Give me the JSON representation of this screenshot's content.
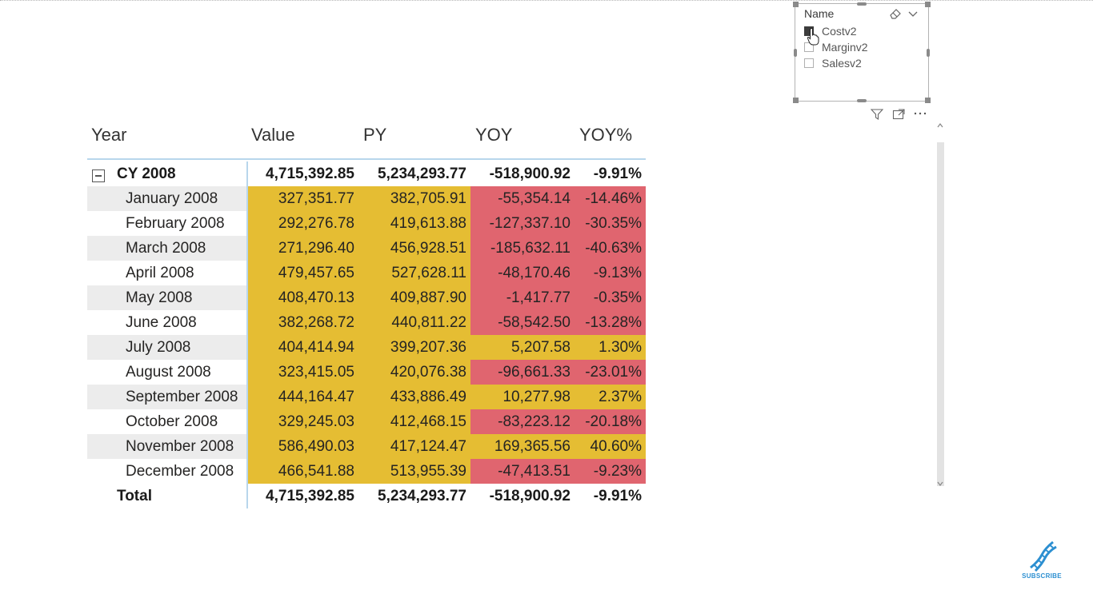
{
  "slicer": {
    "title": "Name",
    "items": [
      {
        "label": "Costv2",
        "checked": true
      },
      {
        "label": "Marginv2",
        "checked": false
      },
      {
        "label": "Salesv2",
        "checked": false
      }
    ],
    "icons": [
      "eraser-icon",
      "chevron-down-icon"
    ]
  },
  "visual_header": {
    "icons": [
      "filter-icon",
      "focus-mode-icon",
      "more-options-icon"
    ]
  },
  "matrix": {
    "columns": [
      "Year",
      "Value",
      "PY",
      "YOY",
      "YOY%"
    ],
    "subtotal": {
      "label": "CY 2008",
      "value": "4,715,392.85",
      "py": "5,234,293.77",
      "yoy": "-518,900.92",
      "yoyp": "-9.91%"
    },
    "rows": [
      {
        "label": "January 2008",
        "value": "327,351.77",
        "py": "382,705.91",
        "yoy": "-55,354.14",
        "yoyp": "-14.46%"
      },
      {
        "label": "February 2008",
        "value": "292,276.78",
        "py": "419,613.88",
        "yoy": "-127,337.10",
        "yoyp": "-30.35%"
      },
      {
        "label": "March 2008",
        "value": "271,296.40",
        "py": "456,928.51",
        "yoy": "-185,632.11",
        "yoyp": "-40.63%"
      },
      {
        "label": "April 2008",
        "value": "479,457.65",
        "py": "527,628.11",
        "yoy": "-48,170.46",
        "yoyp": "-9.13%"
      },
      {
        "label": "May 2008",
        "value": "408,470.13",
        "py": "409,887.90",
        "yoy": "-1,417.77",
        "yoyp": "-0.35%"
      },
      {
        "label": "June 2008",
        "value": "382,268.72",
        "py": "440,811.22",
        "yoy": "-58,542.50",
        "yoyp": "-13.28%"
      },
      {
        "label": "July 2008",
        "value": "404,414.94",
        "py": "399,207.36",
        "yoy": "5,207.58",
        "yoyp": "1.30%"
      },
      {
        "label": "August 2008",
        "value": "323,415.05",
        "py": "420,076.38",
        "yoy": "-96,661.33",
        "yoyp": "-23.01%"
      },
      {
        "label": "September 2008",
        "value": "444,164.47",
        "py": "433,886.49",
        "yoy": "10,277.98",
        "yoyp": "2.37%"
      },
      {
        "label": "October 2008",
        "value": "329,245.03",
        "py": "412,468.15",
        "yoy": "-83,223.12",
        "yoyp": "-20.18%"
      },
      {
        "label": "November 2008",
        "value": "586,490.03",
        "py": "417,124.47",
        "yoy": "169,365.56",
        "yoyp": "40.60%"
      },
      {
        "label": "December 2008",
        "value": "466,541.88",
        "py": "513,955.39",
        "yoy": "-47,413.51",
        "yoyp": "-9.23%"
      }
    ],
    "total": {
      "label": "Total",
      "value": "4,715,392.85",
      "py": "5,234,293.77",
      "yoy": "-518,900.92",
      "yoyp": "-9.91%"
    },
    "colors": {
      "positive_fill": "#e5bd33",
      "negative_fill": "#e0656f",
      "zebra": "#ececec",
      "grid_line": "#b8d6ec"
    }
  },
  "logo": {
    "text": "SUBSCRIBE",
    "color": "#2c8fd1"
  }
}
